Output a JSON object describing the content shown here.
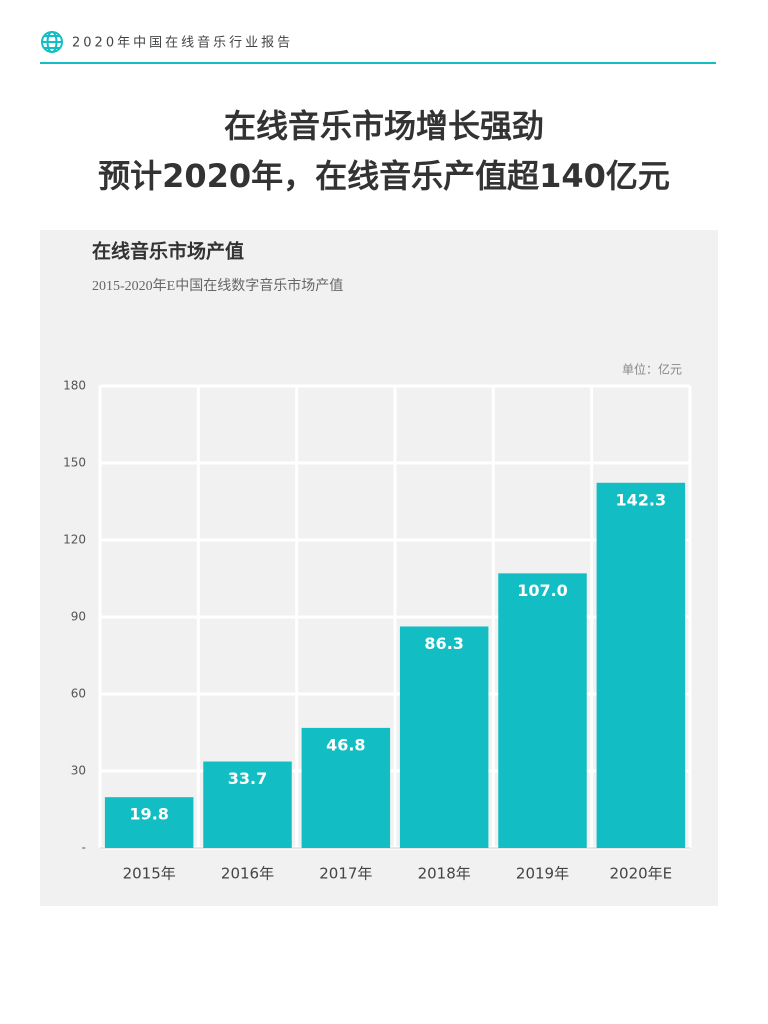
{
  "header": {
    "title": "2020年中国在线音乐行业报告"
  },
  "headline": [
    "在线音乐市场增长强劲",
    "预计2020年，在线音乐产值超140亿元"
  ],
  "chart_data": {
    "type": "bar",
    "title": "在线音乐市场产值",
    "subtitle": "2015-2020年E中国在线数字音乐市场产值",
    "unit_label": "单位：亿元",
    "categories": [
      "2015年",
      "2016年",
      "2017年",
      "2018年",
      "2019年",
      "2020年E"
    ],
    "values": [
      19.8,
      33.7,
      46.8,
      86.3,
      107.0,
      142.3
    ],
    "value_labels": [
      "19.8",
      "33.7",
      "46.8",
      "86.3",
      "107.0",
      "142.3"
    ],
    "color": "#12bec3",
    "ylim": [
      0,
      180
    ],
    "yticks": [
      {
        "value": 0,
        "label": "-"
      },
      30,
      60,
      90,
      120,
      150,
      180
    ],
    "grid": true
  }
}
